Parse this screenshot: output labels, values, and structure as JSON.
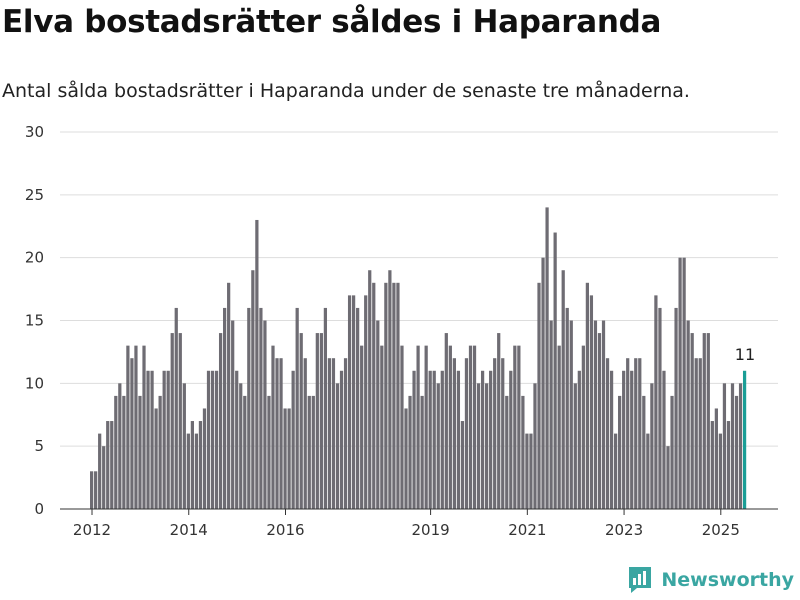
{
  "page": {
    "title": "Elva bostadsrätter såldes i Haparanda",
    "subtitle": "Antal sålda bostadsrätter i Haparanda under de senaste tre månaderna.",
    "brand": "Newsworthy"
  },
  "colors": {
    "bar": "#6e6c73",
    "highlight": "#1a9e96",
    "grid": "#dddddd",
    "axis": "#333333",
    "brand": "#3aa6a2"
  },
  "chart_data": {
    "type": "bar",
    "title": "",
    "xlabel": "",
    "ylabel": "",
    "ylim": [
      0,
      30
    ],
    "yticks": [
      0,
      5,
      10,
      15,
      20,
      25,
      30
    ],
    "grid": true,
    "legend": "none",
    "x_start": "2012-01",
    "xticks": [
      {
        "label": "2012",
        "x": "2012-01"
      },
      {
        "label": "2014",
        "x": "2014-01"
      },
      {
        "label": "2016",
        "x": "2016-01"
      },
      {
        "label": "2019",
        "x": "2019-01"
      },
      {
        "label": "2021",
        "x": "2021-01"
      },
      {
        "label": "2023",
        "x": "2023-01"
      },
      {
        "label": "2025",
        "x": "2025-01"
      }
    ],
    "values": [
      3,
      3,
      6,
      5,
      7,
      7,
      9,
      10,
      9,
      13,
      12,
      13,
      9,
      13,
      11,
      11,
      8,
      9,
      11,
      11,
      14,
      16,
      14,
      10,
      6,
      7,
      6,
      7,
      8,
      11,
      11,
      11,
      14,
      16,
      18,
      15,
      11,
      10,
      9,
      16,
      19,
      23,
      16,
      15,
      9,
      13,
      12,
      12,
      8,
      8,
      11,
      16,
      14,
      12,
      9,
      9,
      14,
      14,
      16,
      12,
      12,
      10,
      11,
      12,
      17,
      17,
      16,
      13,
      17,
      19,
      18,
      15,
      13,
      18,
      19,
      18,
      18,
      13,
      8,
      9,
      11,
      13,
      9,
      13,
      11,
      11,
      10,
      11,
      14,
      13,
      12,
      11,
      7,
      12,
      13,
      13,
      10,
      11,
      10,
      11,
      12,
      14,
      12,
      9,
      11,
      13,
      13,
      9,
      6,
      6,
      10,
      18,
      20,
      24,
      15,
      22,
      13,
      19,
      16,
      15,
      10,
      11,
      13,
      18,
      17,
      15,
      14,
      15,
      12,
      11,
      6,
      9,
      11,
      12,
      11,
      12,
      12,
      9,
      6,
      10,
      17,
      16,
      11,
      5,
      9,
      16,
      20,
      20,
      15,
      14,
      12,
      12,
      14,
      14,
      7,
      8,
      6,
      10,
      7,
      10,
      9,
      10,
      11
    ],
    "highlight_last": true,
    "annotations": [
      {
        "label": "11",
        "x": "2025-07"
      }
    ]
  }
}
